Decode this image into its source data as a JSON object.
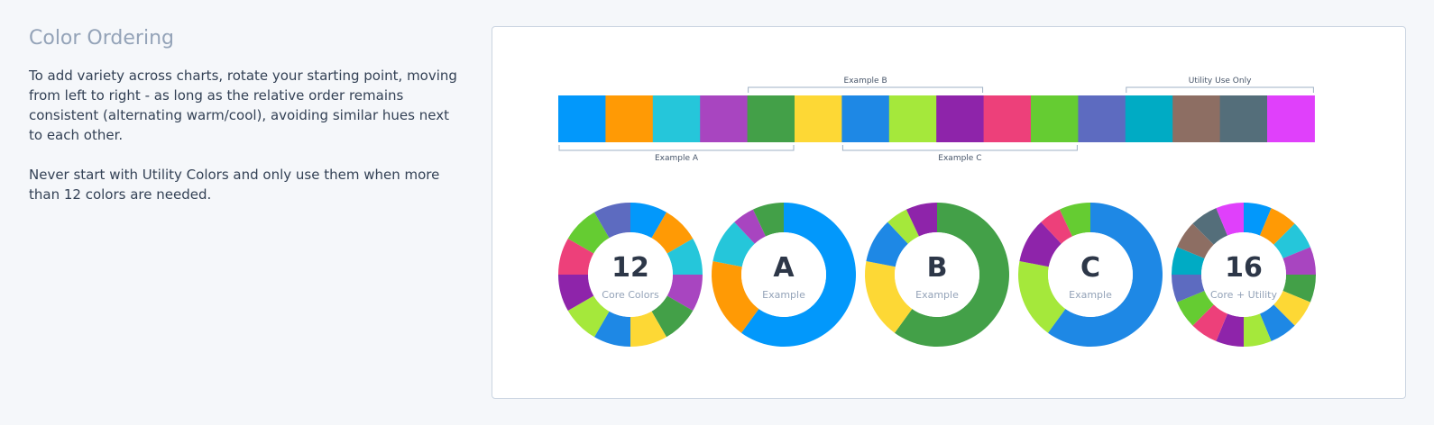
{
  "heading": "Color Ordering",
  "paragraph1": "To add variety across charts, rotate your starting point, moving from left to right - as long as the relative order remains consistent (alternating warm/cool), avoiding similar hues next to each other.",
  "paragraph2": "Never start with Utility Colors and only use them when more than 12 colors are needed.",
  "chart_data": {
    "type": "pie",
    "palette": {
      "colors": [
        "#0298fb",
        "#ff9a05",
        "#25c6da",
        "#a845c0",
        "#43a048",
        "#fdd835",
        "#1e88e5",
        "#a5e83b",
        "#8e24aa",
        "#ed407a",
        "#65cc32",
        "#5d6bc0",
        "#00abc4",
        "#8d6e63",
        "#546e7a",
        "#e040fb"
      ],
      "brackets": [
        {
          "label": "Example A",
          "start": 0,
          "end": 5,
          "position": "bottom"
        },
        {
          "label": "Example B",
          "start": 4,
          "end": 9,
          "position": "top"
        },
        {
          "label": "Example C",
          "start": 6,
          "end": 11,
          "position": "bottom"
        },
        {
          "label": "Utility Use Only",
          "start": 12,
          "end": 16,
          "position": "top"
        }
      ]
    },
    "donuts": [
      {
        "big": "12",
        "sub": "Core Colors",
        "colors": [
          "#0298fb",
          "#ff9a05",
          "#25c6da",
          "#a845c0",
          "#43a048",
          "#fdd835",
          "#1e88e5",
          "#a5e83b",
          "#8e24aa",
          "#ed407a",
          "#65cc32",
          "#5d6bc0"
        ],
        "values": [
          1,
          1,
          1,
          1,
          1,
          1,
          1,
          1,
          1,
          1,
          1,
          1
        ]
      },
      {
        "big": "A",
        "sub": "Example",
        "colors": [
          "#0298fb",
          "#ff9a05",
          "#25c6da",
          "#a845c0",
          "#43a048"
        ],
        "values": [
          60,
          18,
          10,
          5,
          7
        ]
      },
      {
        "big": "B",
        "sub": "Example",
        "colors": [
          "#43a048",
          "#fdd835",
          "#1e88e5",
          "#a5e83b",
          "#8e24aa"
        ],
        "values": [
          60,
          18,
          10,
          5,
          7
        ]
      },
      {
        "big": "C",
        "sub": "Example",
        "colors": [
          "#1e88e5",
          "#a5e83b",
          "#8e24aa",
          "#ed407a",
          "#65cc32"
        ],
        "values": [
          60,
          18,
          10,
          5,
          7
        ]
      },
      {
        "big": "16",
        "sub": "Core + Utility",
        "colors": [
          "#0298fb",
          "#ff9a05",
          "#25c6da",
          "#a845c0",
          "#43a048",
          "#fdd835",
          "#1e88e5",
          "#a5e83b",
          "#8e24aa",
          "#ed407a",
          "#65cc32",
          "#5d6bc0",
          "#00abc4",
          "#8d6e63",
          "#546e7a",
          "#e040fb"
        ],
        "values": [
          1,
          1,
          1,
          1,
          1,
          1,
          1,
          1,
          1,
          1,
          1,
          1,
          1,
          1,
          1,
          1
        ]
      }
    ]
  }
}
